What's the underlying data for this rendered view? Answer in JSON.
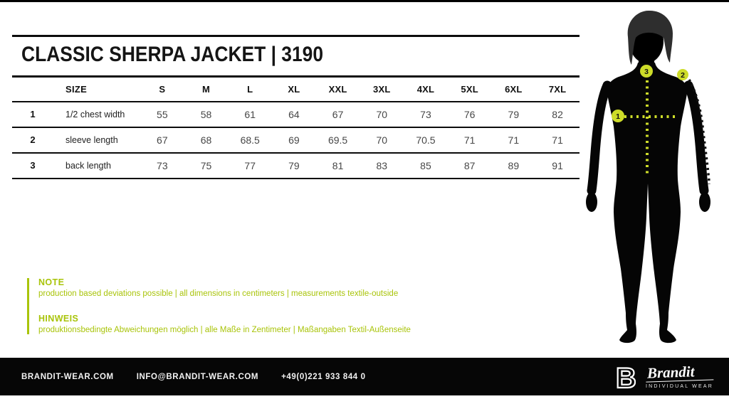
{
  "title": "CLASSIC SHERPA JACKET | 3190",
  "size_table": {
    "index_header": "",
    "label_header": "SIZE",
    "columns": [
      "S",
      "M",
      "L",
      "XL",
      "XXL",
      "3XL",
      "4XL",
      "5XL",
      "6XL",
      "7XL"
    ],
    "rows": [
      {
        "index": "1",
        "label": "1/2 chest width",
        "values": [
          "55",
          "58",
          "61",
          "64",
          "67",
          "70",
          "73",
          "76",
          "79",
          "82"
        ]
      },
      {
        "index": "2",
        "label": "sleeve length",
        "values": [
          "67",
          "68",
          "68.5",
          "69",
          "69.5",
          "70",
          "70.5",
          "71",
          "71",
          "71"
        ]
      },
      {
        "index": "3",
        "label": "back length",
        "values": [
          "73",
          "75",
          "77",
          "79",
          "81",
          "83",
          "85",
          "87",
          "89",
          "91"
        ]
      }
    ],
    "units": "centimeters"
  },
  "notes": {
    "en": {
      "heading": "NOTE",
      "text": "production based deviations possible | all dimensions in centimeters | measurements textile-outside"
    },
    "de": {
      "heading": "HINWEIS",
      "text": "produktionsbedingte Abweichungen möglich | alle Maße in Zentimeter | Maßangaben Textil-Außenseite"
    }
  },
  "figure": {
    "markers": [
      {
        "number": "1",
        "measure": "1/2 chest width"
      },
      {
        "number": "2",
        "measure": "sleeve length"
      },
      {
        "number": "3",
        "measure": "back length"
      }
    ]
  },
  "footer": {
    "website": "BRANDIT-WEAR.COM",
    "email": "INFO@BRANDIT-WEAR.COM",
    "phone": "+49(0)221 933 844 0",
    "logo_letter": "B",
    "brand_name": "Brandit",
    "brand_tagline": "INDIVIDUAL WEAR"
  },
  "colors": {
    "accent_green": "#a9c40a",
    "marker_green": "#cddc29",
    "black": "#060606"
  }
}
